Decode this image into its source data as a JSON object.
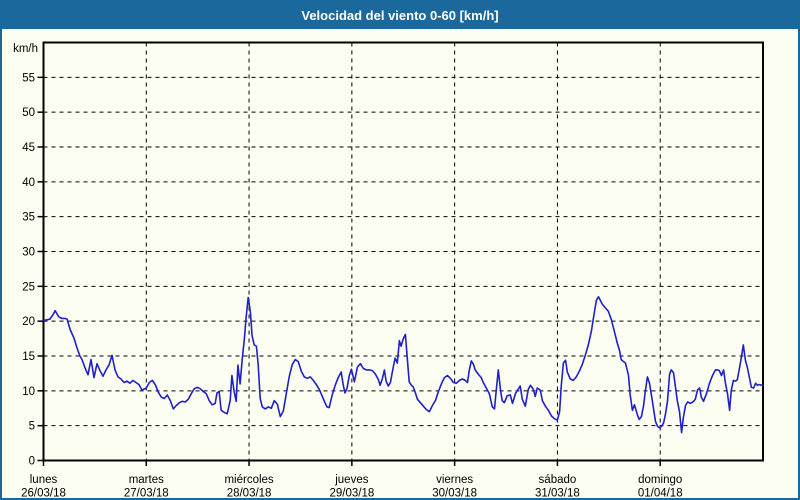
{
  "title": "Velocidad del viento 0-60 [km/h]",
  "colors": {
    "titlebar_bg": "#1b699c",
    "titlebar_text": "#ffffff",
    "frame_border": "#1b699c",
    "background": "#fcfef2",
    "line": "#2020c8",
    "axis": "#000000"
  },
  "chart_data": {
    "type": "line",
    "title": "Velocidad del viento 0-60 [km/h]",
    "ylabel": "km/h",
    "y_axis_top_label": "km/h",
    "ylim": [
      0,
      60
    ],
    "yticks": [
      0,
      5,
      10,
      15,
      20,
      25,
      30,
      35,
      40,
      45,
      50,
      55
    ],
    "grid": "dashed",
    "legend": "none",
    "x_range_hours": [
      0,
      168
    ],
    "x_days": [
      {
        "name": "lunes",
        "date": "26/03/18"
      },
      {
        "name": "martes",
        "date": "27/03/18"
      },
      {
        "name": "miércoles",
        "date": "28/03/18"
      },
      {
        "name": "jueves",
        "date": "29/03/18"
      },
      {
        "name": "viernes",
        "date": "30/03/18"
      },
      {
        "name": "sábado",
        "date": "31/03/18"
      },
      {
        "name": "domingo",
        "date": "01/04/18"
      }
    ],
    "series": [
      {
        "name": "Velocidad del viento",
        "unit": "km/h",
        "color": "#2020c8",
        "points": [
          [
            0.1,
            20.1
          ],
          [
            0.8,
            20.2
          ],
          [
            1.5,
            20.3
          ],
          [
            2.2,
            20.9
          ],
          [
            2.7,
            21.5
          ],
          [
            3.2,
            21.0
          ],
          [
            3.6,
            20.6
          ],
          [
            4.3,
            20.4
          ],
          [
            5.0,
            20.4
          ],
          [
            5.5,
            20.3
          ],
          [
            6.2,
            18.8
          ],
          [
            7.1,
            17.6
          ],
          [
            7.8,
            16.2
          ],
          [
            8.5,
            15.0
          ],
          [
            9.0,
            14.5
          ],
          [
            9.7,
            13.3
          ],
          [
            10.4,
            12.3
          ],
          [
            11.1,
            14.5
          ],
          [
            11.8,
            11.9
          ],
          [
            12.5,
            13.9
          ],
          [
            13.2,
            12.9
          ],
          [
            13.9,
            12.1
          ],
          [
            14.6,
            13.0
          ],
          [
            15.3,
            13.7
          ],
          [
            16.0,
            15.1
          ],
          [
            16.7,
            13.0
          ],
          [
            17.4,
            12.0
          ],
          [
            18.1,
            11.7
          ],
          [
            18.8,
            11.2
          ],
          [
            19.5,
            11.4
          ],
          [
            20.2,
            11.1
          ],
          [
            20.9,
            11.5
          ],
          [
            21.6,
            11.2
          ],
          [
            22.3,
            10.9
          ],
          [
            23.0,
            10.1
          ],
          [
            24.0,
            10.4
          ],
          [
            24.7,
            11.2
          ],
          [
            25.4,
            11.5
          ],
          [
            26.1,
            10.9
          ],
          [
            26.8,
            9.8
          ],
          [
            27.5,
            9.1
          ],
          [
            28.2,
            8.9
          ],
          [
            28.9,
            9.4
          ],
          [
            29.6,
            8.6
          ],
          [
            30.3,
            7.4
          ],
          [
            31.0,
            7.9
          ],
          [
            31.7,
            8.3
          ],
          [
            32.4,
            8.5
          ],
          [
            33.1,
            8.4
          ],
          [
            33.8,
            8.8
          ],
          [
            34.5,
            9.6
          ],
          [
            35.2,
            10.3
          ],
          [
            35.9,
            10.5
          ],
          [
            36.6,
            10.3
          ],
          [
            37.3,
            9.9
          ],
          [
            38.0,
            9.6
          ],
          [
            38.7,
            8.6
          ],
          [
            39.4,
            8.0
          ],
          [
            40.1,
            8.2
          ],
          [
            40.5,
            9.7
          ],
          [
            41.0,
            9.9
          ],
          [
            41.5,
            7.2
          ],
          [
            42.2,
            6.9
          ],
          [
            42.9,
            6.7
          ],
          [
            43.6,
            8.6
          ],
          [
            44.0,
            12.2
          ],
          [
            44.5,
            9.9
          ],
          [
            45.0,
            8.5
          ],
          [
            45.4,
            13.7
          ],
          [
            45.9,
            11.0
          ],
          [
            46.4,
            14.5
          ],
          [
            46.9,
            17.5
          ],
          [
            47.3,
            20.5
          ],
          [
            47.8,
            23.4
          ],
          [
            48.3,
            21.3
          ],
          [
            48.7,
            17.9
          ],
          [
            49.2,
            16.6
          ],
          [
            49.7,
            16.4
          ],
          [
            50.1,
            13.9
          ],
          [
            50.6,
            8.9
          ],
          [
            51.1,
            7.7
          ],
          [
            51.8,
            7.4
          ],
          [
            52.5,
            7.7
          ],
          [
            53.2,
            7.5
          ],
          [
            53.9,
            8.6
          ],
          [
            54.6,
            8.1
          ],
          [
            55.3,
            6.3
          ],
          [
            56.0,
            7.1
          ],
          [
            56.7,
            9.6
          ],
          [
            57.4,
            12.1
          ],
          [
            58.1,
            13.8
          ],
          [
            58.8,
            14.5
          ],
          [
            59.5,
            14.2
          ],
          [
            60.2,
            12.8
          ],
          [
            60.9,
            12.0
          ],
          [
            61.6,
            11.8
          ],
          [
            62.3,
            12.0
          ],
          [
            63.0,
            11.5
          ],
          [
            63.7,
            10.9
          ],
          [
            64.4,
            10.2
          ],
          [
            65.1,
            9.2
          ],
          [
            65.8,
            8.2
          ],
          [
            66.2,
            7.7
          ],
          [
            66.7,
            7.6
          ],
          [
            67.4,
            9.4
          ],
          [
            68.1,
            10.8
          ],
          [
            68.8,
            11.9
          ],
          [
            69.5,
            12.7
          ],
          [
            70.0,
            10.8
          ],
          [
            70.4,
            9.7
          ],
          [
            70.9,
            10.4
          ],
          [
            71.4,
            12.2
          ],
          [
            71.9,
            13.1
          ],
          [
            72.6,
            11.3
          ],
          [
            73.3,
            13.4
          ],
          [
            74.0,
            13.9
          ],
          [
            74.7,
            13.2
          ],
          [
            75.4,
            13.0
          ],
          [
            76.1,
            13.0
          ],
          [
            76.8,
            12.9
          ],
          [
            77.5,
            12.4
          ],
          [
            78.2,
            11.6
          ],
          [
            78.6,
            10.8
          ],
          [
            79.1,
            11.7
          ],
          [
            79.6,
            13.0
          ],
          [
            80.0,
            11.4
          ],
          [
            80.5,
            10.7
          ],
          [
            81.0,
            11.2
          ],
          [
            81.7,
            13.5
          ],
          [
            82.1,
            14.7
          ],
          [
            82.6,
            14.0
          ],
          [
            83.1,
            17.2
          ],
          [
            83.5,
            16.4
          ],
          [
            84.0,
            17.5
          ],
          [
            84.5,
            18.1
          ],
          [
            84.9,
            15.0
          ],
          [
            85.4,
            11.3
          ],
          [
            85.9,
            10.8
          ],
          [
            86.3,
            10.6
          ],
          [
            86.8,
            9.8
          ],
          [
            87.3,
            8.8
          ],
          [
            88.0,
            8.3
          ],
          [
            88.7,
            7.8
          ],
          [
            89.4,
            7.3
          ],
          [
            90.1,
            7.0
          ],
          [
            90.8,
            7.9
          ],
          [
            91.5,
            8.6
          ],
          [
            92.2,
            9.9
          ],
          [
            92.9,
            11.0
          ],
          [
            93.6,
            11.9
          ],
          [
            94.3,
            12.2
          ],
          [
            95.0,
            11.8
          ],
          [
            95.7,
            11.2
          ],
          [
            96.4,
            11.1
          ],
          [
            97.1,
            11.5
          ],
          [
            97.8,
            11.7
          ],
          [
            98.5,
            11.5
          ],
          [
            99.0,
            11.2
          ],
          [
            99.4,
            12.9
          ],
          [
            99.9,
            14.3
          ],
          [
            100.4,
            13.8
          ],
          [
            100.8,
            13.0
          ],
          [
            101.5,
            12.4
          ],
          [
            102.2,
            11.9
          ],
          [
            102.7,
            11.2
          ],
          [
            103.4,
            10.4
          ],
          [
            104.1,
            9.6
          ],
          [
            104.8,
            7.7
          ],
          [
            105.3,
            7.4
          ],
          [
            105.7,
            10.0
          ],
          [
            106.2,
            13.0
          ],
          [
            106.7,
            10.1
          ],
          [
            107.1,
            8.6
          ],
          [
            107.6,
            8.3
          ],
          [
            108.3,
            9.3
          ],
          [
            109.0,
            9.4
          ],
          [
            109.5,
            8.2
          ],
          [
            110.2,
            9.6
          ],
          [
            110.9,
            10.3
          ],
          [
            111.3,
            10.7
          ],
          [
            111.8,
            8.8
          ],
          [
            112.5,
            7.8
          ],
          [
            113.2,
            10.2
          ],
          [
            113.7,
            10.8
          ],
          [
            114.4,
            10.2
          ],
          [
            114.8,
            9.2
          ],
          [
            115.3,
            10.4
          ],
          [
            116.0,
            10.1
          ],
          [
            116.5,
            8.6
          ],
          [
            117.2,
            7.8
          ],
          [
            117.9,
            7.2
          ],
          [
            118.6,
            6.4
          ],
          [
            119.3,
            6.0
          ],
          [
            120.0,
            5.8
          ],
          [
            120.5,
            7.0
          ],
          [
            120.9,
            10.8
          ],
          [
            121.4,
            14.0
          ],
          [
            121.9,
            14.4
          ],
          [
            122.3,
            12.7
          ],
          [
            123.0,
            11.7
          ],
          [
            123.7,
            11.5
          ],
          [
            124.4,
            12.0
          ],
          [
            125.1,
            12.8
          ],
          [
            125.8,
            13.8
          ],
          [
            126.5,
            15.1
          ],
          [
            127.2,
            16.6
          ],
          [
            127.9,
            18.5
          ],
          [
            128.6,
            21.2
          ],
          [
            129.1,
            23.0
          ],
          [
            129.6,
            23.5
          ],
          [
            130.0,
            23.0
          ],
          [
            130.5,
            22.4
          ],
          [
            131.2,
            21.9
          ],
          [
            131.9,
            21.4
          ],
          [
            132.6,
            20.2
          ],
          [
            133.3,
            18.5
          ],
          [
            134.0,
            16.8
          ],
          [
            134.5,
            15.8
          ],
          [
            134.9,
            14.5
          ],
          [
            135.4,
            14.2
          ],
          [
            135.9,
            14.0
          ],
          [
            136.6,
            12.2
          ],
          [
            137.0,
            9.4
          ],
          [
            137.5,
            7.2
          ],
          [
            138.0,
            8.0
          ],
          [
            138.7,
            6.5
          ],
          [
            139.1,
            5.9
          ],
          [
            139.6,
            6.3
          ],
          [
            140.1,
            7.8
          ],
          [
            140.5,
            9.8
          ],
          [
            141.0,
            12.0
          ],
          [
            141.5,
            11.1
          ],
          [
            142.2,
            8.4
          ],
          [
            142.9,
            5.6
          ],
          [
            143.4,
            4.9
          ],
          [
            143.8,
            4.7
          ],
          [
            144.3,
            4.9
          ],
          [
            144.8,
            5.4
          ],
          [
            145.2,
            6.6
          ],
          [
            145.7,
            8.5
          ],
          [
            146.2,
            12.4
          ],
          [
            146.6,
            13.0
          ],
          [
            147.1,
            12.6
          ],
          [
            147.6,
            10.4
          ],
          [
            148.0,
            8.6
          ],
          [
            148.5,
            7.0
          ],
          [
            149.0,
            4.0
          ],
          [
            149.4,
            6.1
          ],
          [
            149.9,
            7.9
          ],
          [
            150.4,
            8.4
          ],
          [
            151.1,
            8.2
          ],
          [
            151.8,
            8.5
          ],
          [
            152.2,
            8.8
          ],
          [
            152.7,
            10.1
          ],
          [
            153.2,
            10.4
          ],
          [
            153.6,
            9.1
          ],
          [
            154.1,
            8.5
          ],
          [
            154.8,
            9.6
          ],
          [
            155.5,
            11.1
          ],
          [
            156.2,
            12.2
          ],
          [
            156.9,
            13.0
          ],
          [
            157.4,
            13.0
          ],
          [
            157.8,
            12.9
          ],
          [
            158.3,
            12.2
          ],
          [
            158.8,
            13.0
          ],
          [
            159.2,
            11.2
          ],
          [
            159.7,
            9.6
          ],
          [
            160.2,
            7.2
          ],
          [
            160.6,
            10.1
          ],
          [
            161.1,
            11.5
          ],
          [
            161.6,
            11.4
          ],
          [
            162.0,
            11.6
          ],
          [
            162.5,
            13.2
          ],
          [
            163.0,
            15.0
          ],
          [
            163.4,
            16.6
          ],
          [
            163.9,
            14.4
          ],
          [
            164.4,
            13.2
          ],
          [
            164.9,
            11.7
          ],
          [
            165.3,
            10.5
          ],
          [
            165.8,
            10.4
          ],
          [
            166.3,
            11.1
          ],
          [
            166.7,
            10.8
          ],
          [
            167.2,
            10.9
          ],
          [
            167.7,
            10.8
          ],
          [
            168.0,
            10.8
          ]
        ]
      }
    ]
  }
}
